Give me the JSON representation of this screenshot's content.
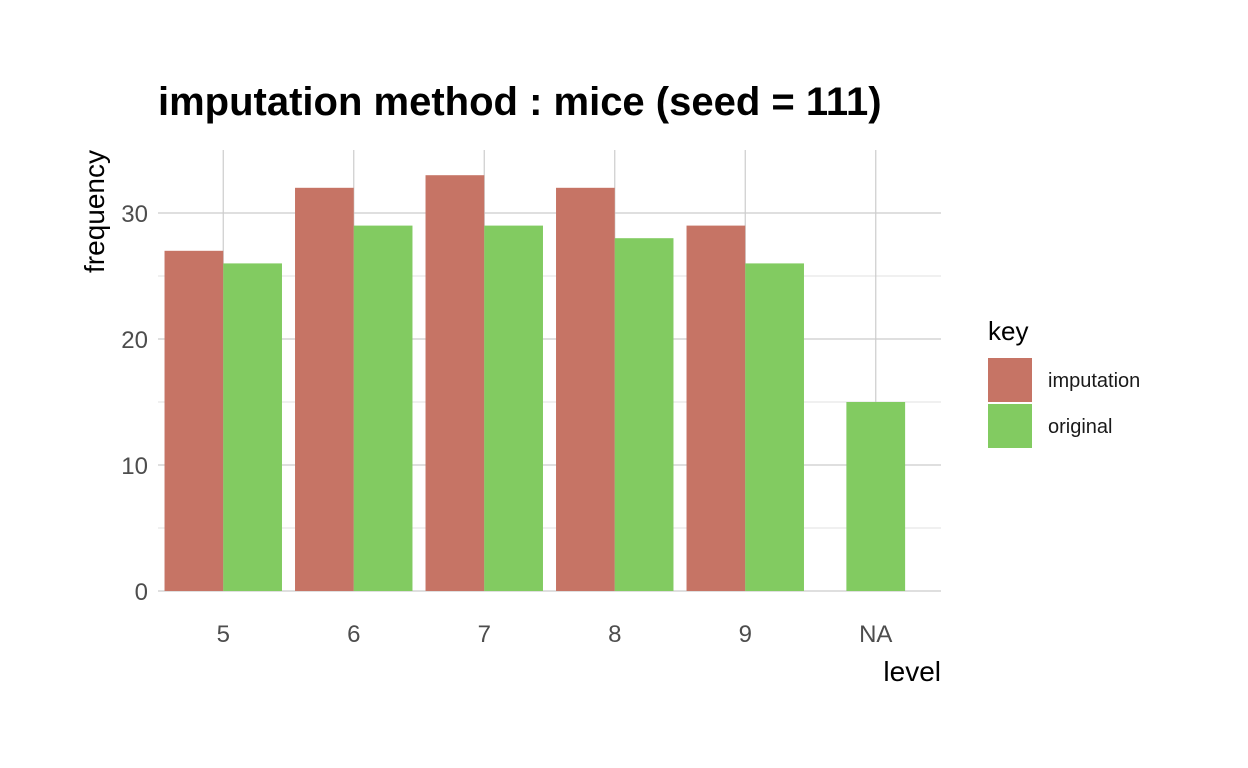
{
  "chart_data": {
    "type": "bar",
    "title": "imputation method : mice (seed = 111)",
    "xlabel": "level",
    "ylabel": "frequency",
    "categories": [
      "5",
      "6",
      "7",
      "8",
      "9",
      "NA"
    ],
    "series": [
      {
        "name": "imputation",
        "values": [
          27,
          32,
          33,
          32,
          29,
          null
        ],
        "color": "#c67465"
      },
      {
        "name": "original",
        "values": [
          26,
          29,
          29,
          28,
          26,
          15
        ],
        "color": "#82cb61"
      }
    ],
    "ylim": [
      0,
      35
    ],
    "yticks": [
      0,
      10,
      20,
      30
    ],
    "grid": true,
    "legend": {
      "title": "key",
      "position": "right"
    }
  }
}
